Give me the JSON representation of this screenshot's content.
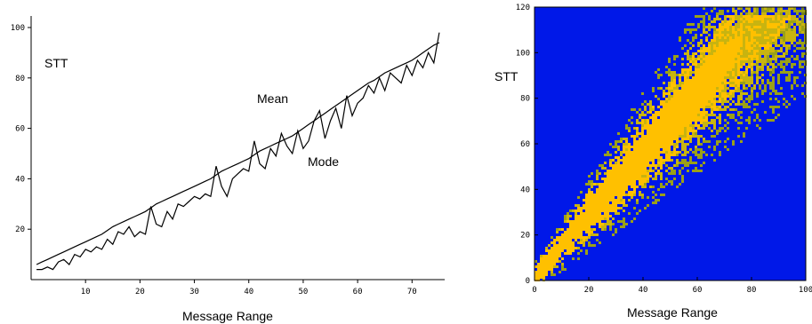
{
  "chart_data": [
    {
      "type": "line",
      "x": [
        1,
        2,
        3,
        4,
        5,
        6,
        7,
        8,
        9,
        10,
        11,
        12,
        13,
        14,
        15,
        16,
        17,
        18,
        19,
        20,
        21,
        22,
        23,
        24,
        25,
        26,
        27,
        28,
        29,
        30,
        31,
        32,
        33,
        34,
        35,
        36,
        37,
        38,
        39,
        40,
        41,
        42,
        43,
        44,
        45,
        46,
        47,
        48,
        49,
        50,
        51,
        52,
        53,
        54,
        55,
        56,
        57,
        58,
        59,
        60,
        61,
        62,
        63,
        64,
        65,
        66,
        67,
        68,
        69,
        70,
        71,
        72,
        73,
        74,
        75
      ],
      "series": [
        {
          "name": "Mean",
          "values": [
            6,
            7,
            8,
            9,
            10,
            11,
            12,
            13,
            14,
            15,
            16,
            17,
            18,
            19.5,
            21,
            22,
            23,
            24,
            25,
            26,
            27,
            28.5,
            30,
            31,
            32,
            33,
            34,
            35,
            36,
            37,
            38,
            39,
            40,
            41.5,
            43,
            44,
            45,
            46,
            47,
            48,
            49.5,
            51,
            52,
            53,
            54,
            55,
            56,
            57,
            58.5,
            60,
            61.5,
            63,
            64.5,
            66,
            67.5,
            69,
            70.5,
            72,
            73.5,
            75,
            76.5,
            78,
            79,
            80.5,
            82,
            83,
            84,
            85,
            86,
            87,
            88.5,
            90,
            91.5,
            93,
            94
          ]
        },
        {
          "name": "Mode",
          "values": [
            4,
            4,
            5,
            4,
            7,
            8,
            6,
            10,
            9,
            12,
            11,
            13,
            12,
            16,
            14,
            19,
            18,
            21,
            17,
            19,
            18,
            29,
            22,
            21,
            27,
            24,
            30,
            29,
            31,
            33,
            32,
            34,
            33,
            45,
            37,
            33,
            40,
            42,
            44,
            43,
            55,
            46,
            44,
            52,
            49,
            58,
            53,
            50,
            59,
            52,
            55,
            63,
            67,
            56,
            63,
            68,
            60,
            73,
            65,
            70,
            72,
            77,
            74,
            80,
            75,
            82,
            80,
            78,
            85,
            81,
            87,
            84,
            90,
            86,
            98
          ]
        }
      ],
      "xlabel": "Message Range",
      "ylabel": "STT",
      "annotations": [
        "Mean",
        "Mode"
      ],
      "xticks": [
        10,
        20,
        30,
        40,
        50,
        60,
        70
      ],
      "yticks": [
        20,
        40,
        60,
        80,
        100
      ],
      "xlim": [
        0,
        76
      ],
      "ylim": [
        0,
        100
      ]
    },
    {
      "type": "heatmap",
      "xlabel": "Message Range",
      "ylabel": "STT",
      "xticks": [
        0,
        20,
        40,
        60,
        80,
        100
      ],
      "yticks": [
        0,
        20,
        40,
        60,
        80,
        100,
        120
      ],
      "xlim": [
        0,
        100
      ],
      "ylim": [
        0,
        120
      ],
      "background_color": "#0018e8",
      "density_colors": [
        "#6e8020",
        "#9aa018",
        "#c8b410",
        "#ffc000"
      ]
    }
  ]
}
